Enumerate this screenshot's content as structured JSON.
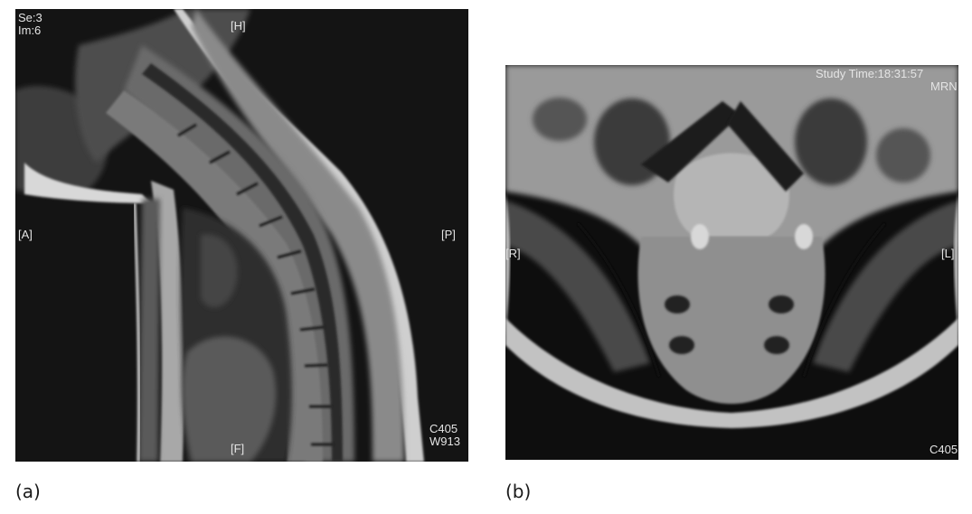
{
  "figure": {
    "panels": [
      {
        "caption": "(a)",
        "view": "sagittal",
        "overlay": {
          "series": "Se:3",
          "image": "Im:6",
          "top": "[H]",
          "left": "[A]",
          "right": "[P]",
          "bottom": "[F]",
          "window_center": "C405",
          "window_width": "W913"
        }
      },
      {
        "caption": "(b)",
        "view": "axial",
        "overlay": {
          "study_time": "Study Time:18:31:57",
          "mrn": "MRN",
          "left": "[R]",
          "right": "[L]",
          "window_center": "C405"
        }
      }
    ]
  }
}
